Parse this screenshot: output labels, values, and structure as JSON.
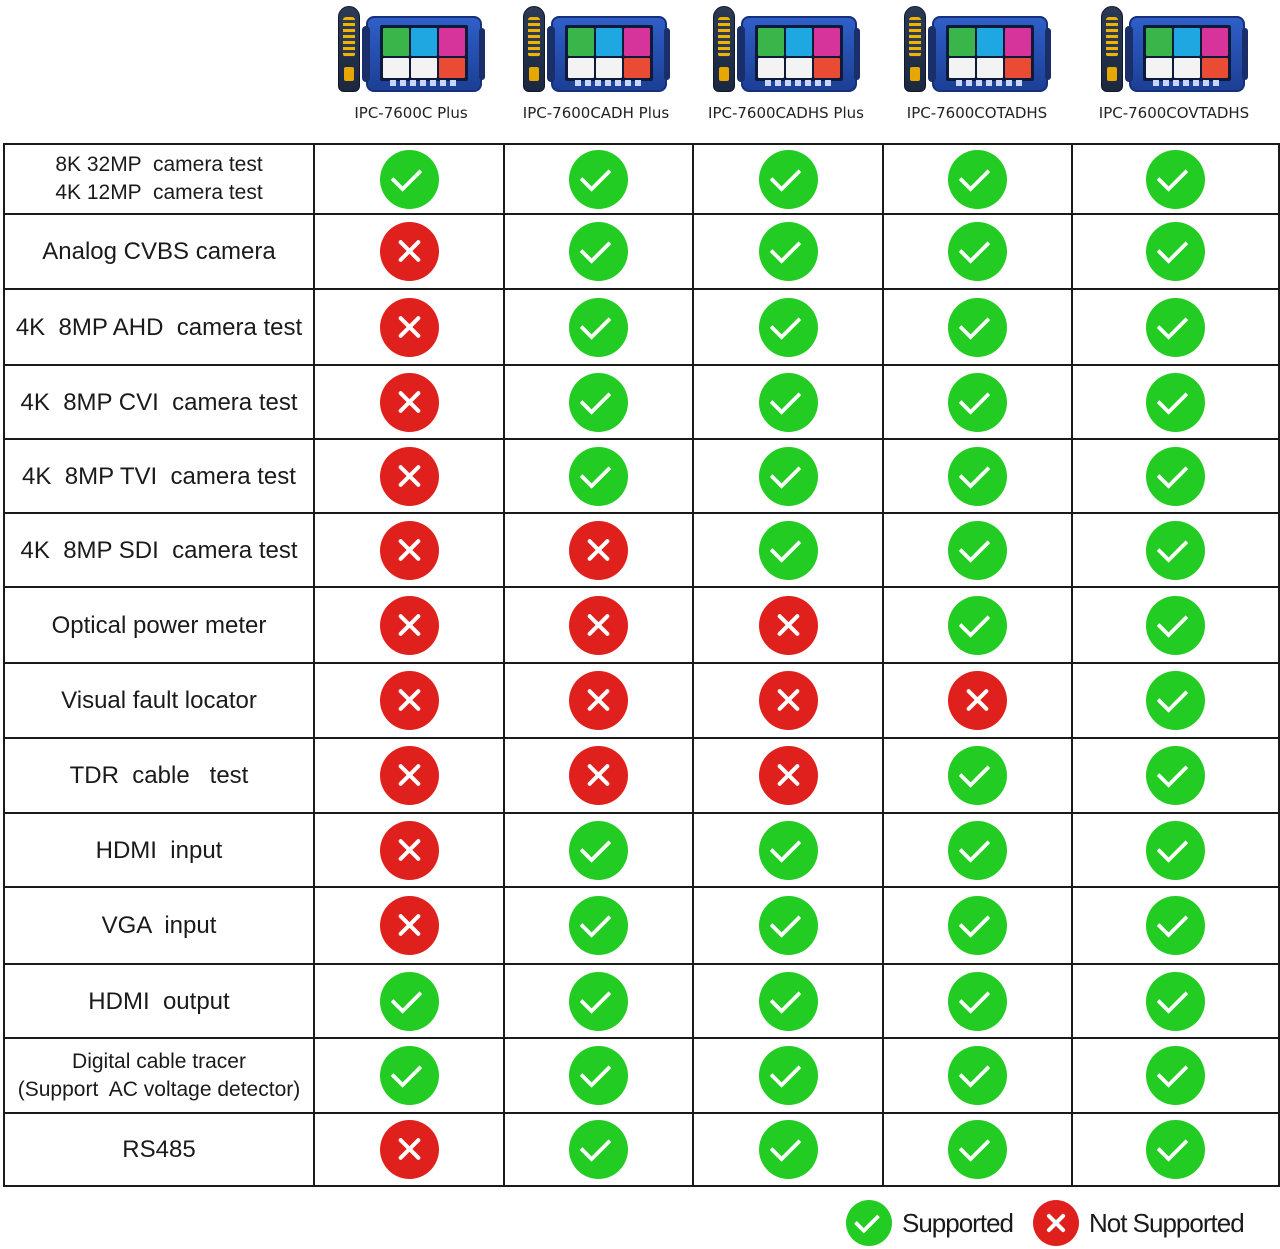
{
  "products": [
    {
      "name": "IPC-7600C Plus"
    },
    {
      "name": "IPC-7600CADH Plus"
    },
    {
      "name": "IPC-7600CADHS Plus"
    },
    {
      "name": "IPC-7600COTADHS"
    },
    {
      "name": "IPC-7600COVTADHS"
    }
  ],
  "features": [
    {
      "label": "8K 32MP  camera test",
      "sub": "4K 12MP  camera test",
      "support": [
        true,
        true,
        true,
        true,
        true
      ]
    },
    {
      "label": "Analog CVBS camera",
      "support": [
        false,
        true,
        true,
        true,
        true
      ]
    },
    {
      "label": "4K  8MP AHD  camera test",
      "support": [
        false,
        true,
        true,
        true,
        true
      ]
    },
    {
      "label": "4K  8MP CVI  camera test",
      "support": [
        false,
        true,
        true,
        true,
        true
      ]
    },
    {
      "label": "4K  8MP TVI  camera test",
      "support": [
        false,
        true,
        true,
        true,
        true
      ]
    },
    {
      "label": "4K  8MP SDI  camera test",
      "support": [
        false,
        false,
        true,
        true,
        true
      ]
    },
    {
      "label": "Optical power meter",
      "support": [
        false,
        false,
        false,
        true,
        true
      ]
    },
    {
      "label": "Visual fault locator",
      "support": [
        false,
        false,
        false,
        false,
        true
      ]
    },
    {
      "label": "TDR  cable   test",
      "support": [
        false,
        false,
        false,
        true,
        true
      ]
    },
    {
      "label": "HDMI  input",
      "support": [
        false,
        true,
        true,
        true,
        true
      ]
    },
    {
      "label": "VGA  input",
      "support": [
        false,
        true,
        true,
        true,
        true
      ]
    },
    {
      "label": "HDMI  output",
      "support": [
        true,
        true,
        true,
        true,
        true
      ]
    },
    {
      "label": "Digital cable tracer",
      "sub": "(Support  AC voltage detector)",
      "support": [
        true,
        true,
        true,
        true,
        true
      ]
    },
    {
      "label": "RS485",
      "support": [
        false,
        true,
        true,
        true,
        true
      ]
    }
  ],
  "legend": {
    "supported": "Supported",
    "not_supported": "Not Supported"
  },
  "colors": {
    "supported": "#22cc22",
    "not_supported": "#e0201c"
  }
}
